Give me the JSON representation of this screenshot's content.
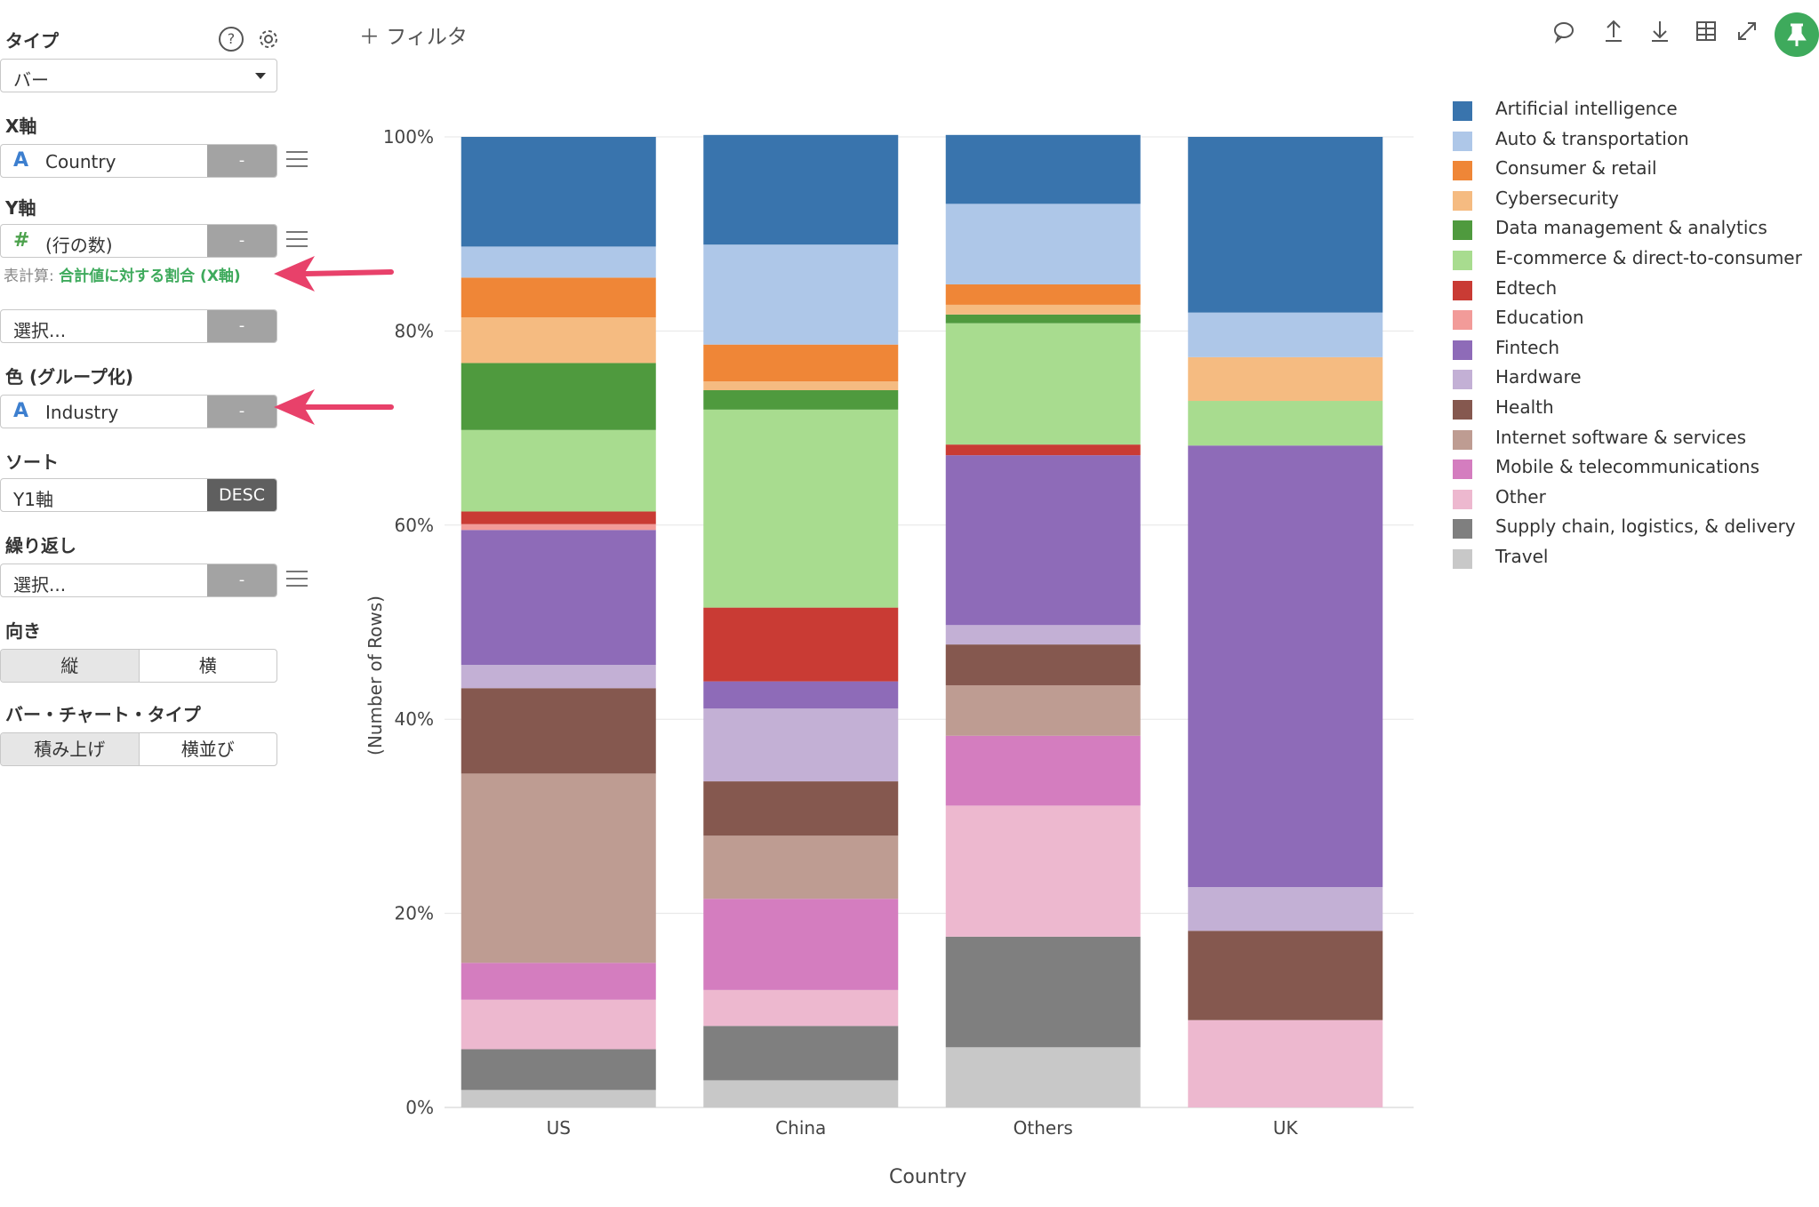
{
  "panel": {
    "type_label": "タイプ",
    "type_value": "バー",
    "x_label": "X軸",
    "x_field_type": "A",
    "x_field": "Country",
    "y_label": "Y軸",
    "y_field_type": "#",
    "y_field": "(行の数)",
    "calc_prefix": "表計算:",
    "calc_value": "合計値に対する割合 (X軸)",
    "y2_placeholder": "選択...",
    "color_label": "色 (グループ化)",
    "color_field_type": "A",
    "color_field": "Industry",
    "sort_label": "ソート",
    "sort_field": "Y1軸",
    "sort_order": "DESC",
    "repeat_label": "繰り返し",
    "repeat_placeholder": "選択...",
    "orient_label": "向き",
    "orient_options": [
      "縦",
      "横"
    ],
    "bartype_label": "バー・チャート・タイプ",
    "bartype_options": [
      "積み上げ",
      "横並び"
    ],
    "dash": "-"
  },
  "toolbar": {
    "add_filter": "＋ フィルタ"
  },
  "icons": [
    "help-icon",
    "gear-icon",
    "comment-icon",
    "upload-icon",
    "download-icon",
    "table-icon",
    "expand-icon",
    "pin-icon"
  ],
  "chart_data": {
    "type": "bar",
    "stacked": true,
    "xlabel": "Country",
    "ylabel": "(Number of Rows)",
    "ylim": [
      0,
      100
    ],
    "y_ticks": [
      "0%",
      "20%",
      "40%",
      "60%",
      "80%",
      "100%"
    ],
    "categories": [
      "US",
      "China",
      "Others",
      "UK"
    ],
    "series": [
      {
        "name": "Travel",
        "color": "#c8c8c8",
        "values": [
          1.8,
          2.8,
          6.2,
          0
        ]
      },
      {
        "name": "Supply chain, logistics, & delivery",
        "color": "#7f7f7f",
        "values": [
          4.2,
          5.6,
          11.4,
          0
        ]
      },
      {
        "name": "Other",
        "color": "#edb8cf",
        "values": [
          5.1,
          3.7,
          13.5,
          9.0
        ]
      },
      {
        "name": "Mobile & telecommunications",
        "color": "#d47dbf",
        "values": [
          3.8,
          9.4,
          7.2,
          0
        ]
      },
      {
        "name": "Internet software & services",
        "color": "#be9c92",
        "values": [
          19.5,
          6.5,
          5.2,
          0
        ]
      },
      {
        "name": "Health",
        "color": "#85584f",
        "values": [
          8.8,
          5.6,
          4.2,
          9.2
        ]
      },
      {
        "name": "Hardware",
        "color": "#c3b0d5",
        "values": [
          2.4,
          7.5,
          2.0,
          4.5
        ]
      },
      {
        "name": "Fintech",
        "color": "#8e6bb8",
        "values": [
          13.9,
          2.8,
          17.5,
          45.5
        ]
      },
      {
        "name": "Education",
        "color": "#f29b99",
        "values": [
          0.6,
          0,
          0,
          0
        ]
      },
      {
        "name": "Edtech",
        "color": "#c93b34",
        "values": [
          1.3,
          7.6,
          1.1,
          0
        ]
      },
      {
        "name": "E-commerce & direct-to-consumer",
        "color": "#a8dc8f",
        "values": [
          8.4,
          20.4,
          12.5,
          4.6
        ]
      },
      {
        "name": "Data management & analytics",
        "color": "#4f9a3e",
        "values": [
          6.9,
          2.0,
          0.9,
          0
        ]
      },
      {
        "name": "Cybersecurity",
        "color": "#f5bb81",
        "values": [
          4.7,
          0.9,
          1.0,
          4.5
        ]
      },
      {
        "name": "Consumer & retail",
        "color": "#ef8637",
        "values": [
          4.1,
          3.8,
          2.1,
          0
        ]
      },
      {
        "name": "Auto & transportation",
        "color": "#aec7e8",
        "values": [
          3.2,
          10.3,
          8.3,
          4.6
        ]
      },
      {
        "name": "Artificial intelligence",
        "color": "#3974ad",
        "values": [
          11.3,
          11.3,
          7.1,
          18.1
        ]
      }
    ],
    "legend": [
      {
        "name": "Artificial intelligence",
        "color": "#3974ad"
      },
      {
        "name": "Auto & transportation",
        "color": "#aec7e8"
      },
      {
        "name": "Consumer & retail",
        "color": "#ef8637"
      },
      {
        "name": "Cybersecurity",
        "color": "#f5bb81"
      },
      {
        "name": "Data management & analytics",
        "color": "#4f9a3e"
      },
      {
        "name": "E-commerce & direct-to-consumer",
        "color": "#a8dc8f"
      },
      {
        "name": "Edtech",
        "color": "#c93b34"
      },
      {
        "name": "Education",
        "color": "#f29b99"
      },
      {
        "name": "Fintech",
        "color": "#8e6bb8"
      },
      {
        "name": "Hardware",
        "color": "#c3b0d5"
      },
      {
        "name": "Health",
        "color": "#85584f"
      },
      {
        "name": "Internet software & services",
        "color": "#be9c92"
      },
      {
        "name": "Mobile & telecommunications",
        "color": "#d47dbf"
      },
      {
        "name": "Other",
        "color": "#edb8cf"
      },
      {
        "name": "Supply chain, logistics, & delivery",
        "color": "#7f7f7f"
      },
      {
        "name": "Travel",
        "color": "#c8c8c8"
      }
    ],
    "legend_placement": "right"
  }
}
